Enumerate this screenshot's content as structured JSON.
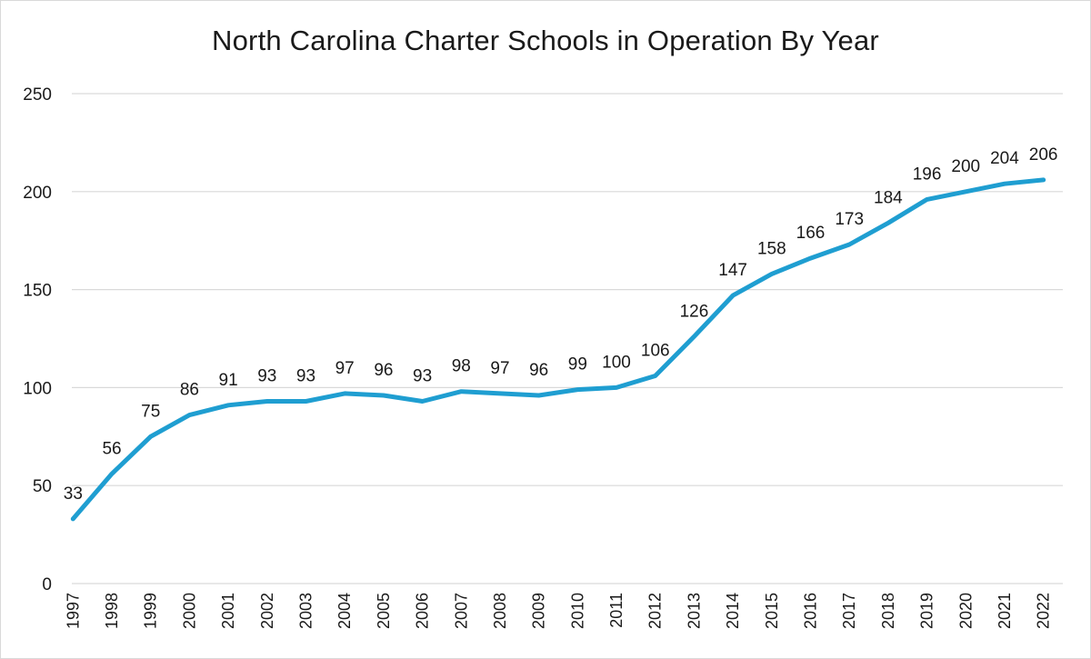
{
  "chart_data": {
    "type": "line",
    "title": "North Carolina Charter Schools in Operation By Year",
    "xlabel": "",
    "ylabel": "",
    "categories": [
      "1997",
      "1998",
      "1999",
      "2000",
      "2001",
      "2002",
      "2003",
      "2004",
      "2005",
      "2006",
      "2007",
      "2008",
      "2009",
      "2010",
      "2011",
      "2012",
      "2013",
      "2014",
      "2015",
      "2016",
      "2017",
      "2018",
      "2019",
      "2020",
      "2021",
      "2022"
    ],
    "series": [
      {
        "values": [
          33,
          56,
          75,
          86,
          91,
          93,
          93,
          97,
          96,
          93,
          98,
          97,
          96,
          99,
          100,
          106,
          126,
          147,
          158,
          166,
          173,
          184,
          196,
          200,
          204,
          206
        ],
        "color": "#1f9ed1"
      }
    ],
    "ylim": [
      0,
      250
    ],
    "yticks": [
      0,
      50,
      100,
      150,
      200,
      250
    ],
    "grid": true,
    "legend": "none",
    "data_labels": true
  }
}
